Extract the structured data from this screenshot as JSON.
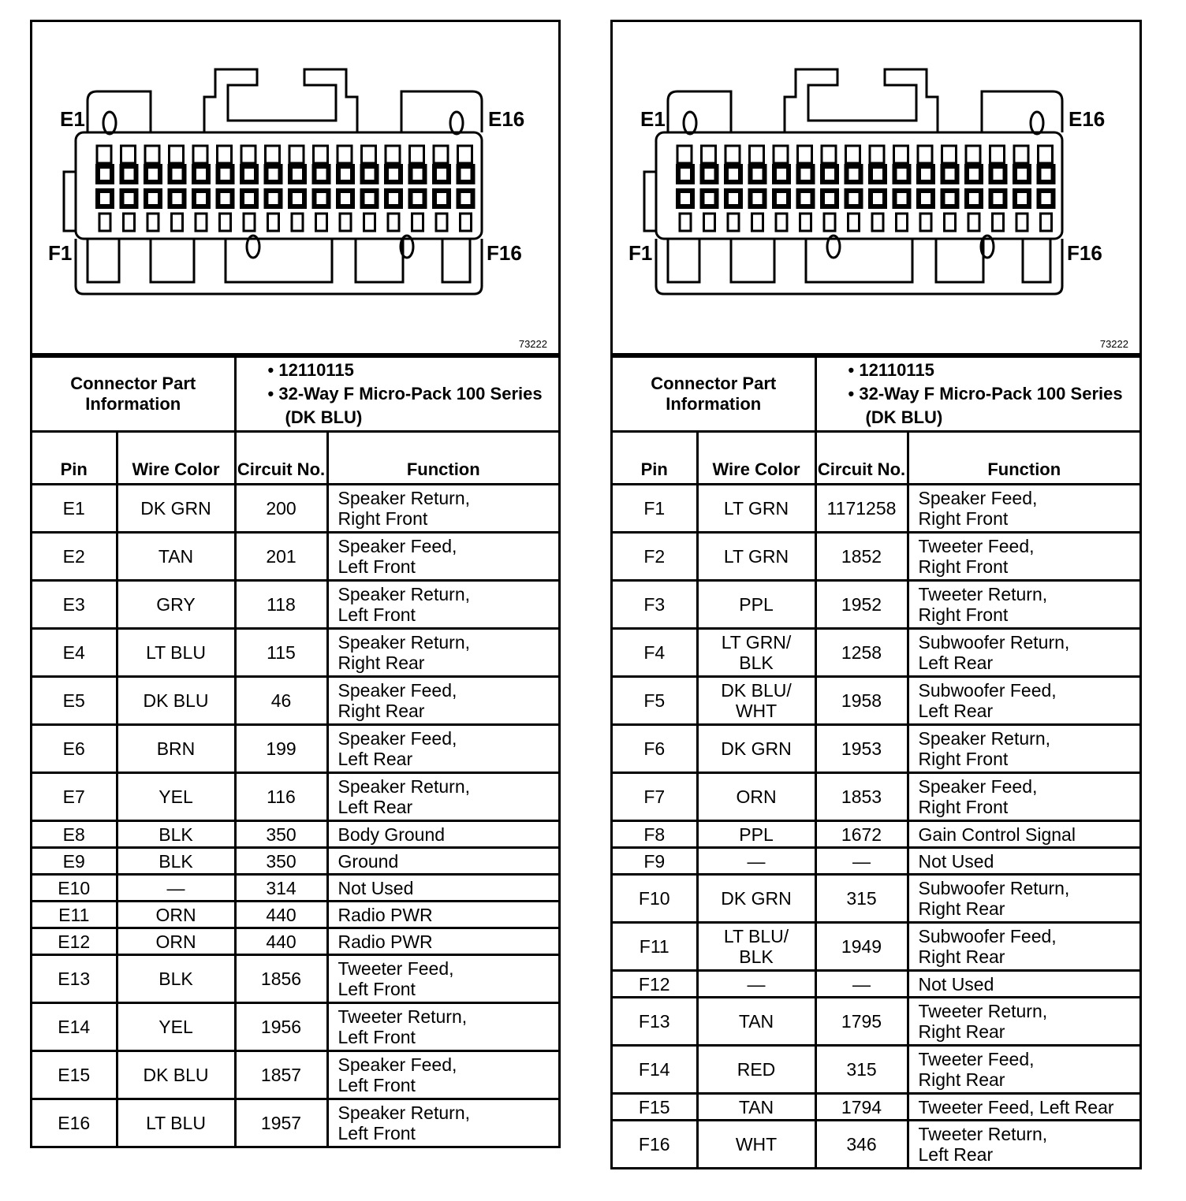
{
  "panels": [
    {
      "id": "left",
      "figure": {
        "labels": {
          "top_left": "E1",
          "top_right": "E16",
          "bottom_left": "F1",
          "bottom_right": "F16"
        },
        "figure_number": "73222"
      },
      "connector_info": {
        "label": "Connector Part Information",
        "part_number": "12110115",
        "description": "32-Way F Micro-Pack 100 Series (DK BLU)"
      },
      "columns": [
        "Pin",
        "Wire Color",
        "Circuit No.",
        "Function"
      ],
      "rows": [
        {
          "pin": "E1",
          "wire": "DK GRN",
          "circuit": "200",
          "function": "Speaker Return,\nRight Front"
        },
        {
          "pin": "E2",
          "wire": "TAN",
          "circuit": "201",
          "function": "Speaker Feed,\nLeft Front"
        },
        {
          "pin": "E3",
          "wire": "GRY",
          "circuit": "118",
          "function": "Speaker Return,\nLeft Front"
        },
        {
          "pin": "E4",
          "wire": "LT BLU",
          "circuit": "115",
          "function": "Speaker Return,\nRight Rear"
        },
        {
          "pin": "E5",
          "wire": "DK BLU",
          "circuit": "46",
          "function": "Speaker Feed,\nRight Rear"
        },
        {
          "pin": "E6",
          "wire": "BRN",
          "circuit": "199",
          "function": "Speaker Feed,\nLeft Rear"
        },
        {
          "pin": "E7",
          "wire": "YEL",
          "circuit": "116",
          "function": "Speaker Return,\nLeft Rear"
        },
        {
          "pin": "E8",
          "wire": "BLK",
          "circuit": "350",
          "function": "Body Ground"
        },
        {
          "pin": "E9",
          "wire": "BLK",
          "circuit": "350",
          "function": "Ground"
        },
        {
          "pin": "E10",
          "wire": "—",
          "circuit": "314",
          "function": "Not Used"
        },
        {
          "pin": "E11",
          "wire": "ORN",
          "circuit": "440",
          "function": "Radio PWR"
        },
        {
          "pin": "E12",
          "wire": "ORN",
          "circuit": "440",
          "function": "Radio PWR"
        },
        {
          "pin": "E13",
          "wire": "BLK",
          "circuit": "1856",
          "function": "Tweeter Feed,\nLeft Front"
        },
        {
          "pin": "E14",
          "wire": "YEL",
          "circuit": "1956",
          "function": "Tweeter Return,\nLeft Front"
        },
        {
          "pin": "E15",
          "wire": "DK BLU",
          "circuit": "1857",
          "function": "Speaker Feed,\nLeft Front"
        },
        {
          "pin": "E16",
          "wire": "LT BLU",
          "circuit": "1957",
          "function": "Speaker Return,\nLeft Front"
        }
      ]
    },
    {
      "id": "right",
      "figure": {
        "labels": {
          "top_left": "E1",
          "top_right": "E16",
          "bottom_left": "F1",
          "bottom_right": "F16"
        },
        "figure_number": "73222"
      },
      "connector_info": {
        "label": "Connector Part Information",
        "part_number": "12110115",
        "description": "32-Way F Micro-Pack 100 Series (DK BLU)"
      },
      "columns": [
        "Pin",
        "Wire Color",
        "Circuit No.",
        "Function"
      ],
      "rows": [
        {
          "pin": "F1",
          "wire": "LT GRN",
          "circuit": "1171258",
          "function": "Speaker Feed,\nRight Front"
        },
        {
          "pin": "F2",
          "wire": "LT GRN",
          "circuit": "1852",
          "function": "Tweeter Feed,\nRight Front"
        },
        {
          "pin": "F3",
          "wire": "PPL",
          "circuit": "1952",
          "function": "Tweeter Return,\nRight Front"
        },
        {
          "pin": "F4",
          "wire": "LT GRN/\nBLK",
          "circuit": "1258",
          "function": "Subwoofer Return,\nLeft Rear"
        },
        {
          "pin": "F5",
          "wire": "DK BLU/\nWHT",
          "circuit": "1958",
          "function": "Subwoofer Feed,\nLeft Rear"
        },
        {
          "pin": "F6",
          "wire": "DK GRN",
          "circuit": "1953",
          "function": "Speaker Return,\nRight Front"
        },
        {
          "pin": "F7",
          "wire": "ORN",
          "circuit": "1853",
          "function": "Speaker Feed,\nRight Front"
        },
        {
          "pin": "F8",
          "wire": "PPL",
          "circuit": "1672",
          "function": "Gain Control Signal"
        },
        {
          "pin": "F9",
          "wire": "—",
          "circuit": "—",
          "function": "Not Used"
        },
        {
          "pin": "F10",
          "wire": "DK GRN",
          "circuit": "315",
          "function": "Subwoofer Return,\nRight Rear"
        },
        {
          "pin": "F11",
          "wire": "LT BLU/\nBLK",
          "circuit": "1949",
          "function": "Subwoofer Feed,\nRight Rear"
        },
        {
          "pin": "F12",
          "wire": "—",
          "circuit": "—",
          "function": "Not Used"
        },
        {
          "pin": "F13",
          "wire": "TAN",
          "circuit": "1795",
          "function": "Tweeter Return,\nRight Rear"
        },
        {
          "pin": "F14",
          "wire": "RED",
          "circuit": "315",
          "function": "Tweeter Feed,\nRight Rear"
        },
        {
          "pin": "F15",
          "wire": "TAN",
          "circuit": "1794",
          "function": "Tweeter Feed, Left Rear"
        },
        {
          "pin": "F16",
          "wire": "WHT",
          "circuit": "346",
          "function": "Tweeter Return,\nLeft Rear"
        }
      ]
    }
  ]
}
